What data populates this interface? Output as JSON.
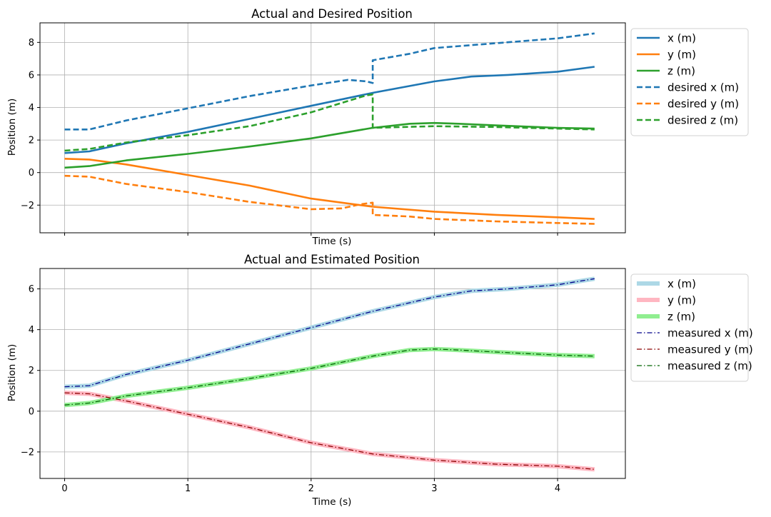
{
  "chart_data": [
    {
      "type": "line",
      "title": "Actual and Desired Position",
      "xlabel": "Time (s)",
      "ylabel": "Position (m)",
      "xlim": [
        -0.2,
        4.55
      ],
      "ylim": [
        -3.7,
        9.2
      ],
      "xticks": [
        0,
        1,
        2,
        3,
        4
      ],
      "xtick_labels_visible": false,
      "yticks": [
        -2,
        0,
        2,
        4,
        6,
        8
      ],
      "grid": true,
      "legend": "outside-right",
      "series": [
        {
          "name": "x (m)",
          "color": "#1f77b4",
          "style": "solid",
          "x": [
            0,
            0.2,
            0.5,
            1,
            1.5,
            2,
            2.5,
            3,
            3.3,
            3.6,
            4,
            4.3
          ],
          "y": [
            1.2,
            1.3,
            1.8,
            2.5,
            3.3,
            4.1,
            4.9,
            5.6,
            5.9,
            6.0,
            6.2,
            6.5
          ]
        },
        {
          "name": "y (m)",
          "color": "#ff7f0e",
          "style": "solid",
          "x": [
            0,
            0.2,
            0.5,
            1,
            1.5,
            2,
            2.5,
            3,
            3.5,
            4,
            4.3
          ],
          "y": [
            0.85,
            0.8,
            0.5,
            -0.15,
            -0.8,
            -1.6,
            -2.1,
            -2.4,
            -2.6,
            -2.75,
            -2.85
          ]
        },
        {
          "name": "z (m)",
          "color": "#2ca02c",
          "style": "solid",
          "x": [
            0,
            0.2,
            0.5,
            1,
            1.5,
            2,
            2.5,
            2.8,
            3,
            3.2,
            3.5,
            4,
            4.3
          ],
          "y": [
            0.3,
            0.4,
            0.75,
            1.15,
            1.6,
            2.1,
            2.75,
            3.0,
            3.05,
            3.0,
            2.9,
            2.75,
            2.7
          ]
        },
        {
          "name": "desired x (m)",
          "color": "#1f77b4",
          "style": "dashed",
          "x": [
            0,
            0.2,
            0.5,
            1,
            1.5,
            2,
            2.3,
            2.45,
            2.5,
            2.5,
            2.8,
            3,
            3.5,
            4,
            4.3
          ],
          "y": [
            2.65,
            2.65,
            3.2,
            3.95,
            4.7,
            5.35,
            5.7,
            5.6,
            5.5,
            6.9,
            7.3,
            7.65,
            7.95,
            8.25,
            8.55
          ]
        },
        {
          "name": "desired y (m)",
          "color": "#ff7f0e",
          "style": "dashed",
          "x": [
            0,
            0.2,
            0.5,
            1,
            1.5,
            2,
            2.25,
            2.4,
            2.5,
            2.5,
            2.8,
            3,
            3.5,
            4,
            4.3
          ],
          "y": [
            -0.2,
            -0.25,
            -0.7,
            -1.2,
            -1.8,
            -2.25,
            -2.2,
            -1.95,
            -1.85,
            -2.6,
            -2.7,
            -2.85,
            -3.0,
            -3.1,
            -3.15
          ]
        },
        {
          "name": "desired z (m)",
          "color": "#2ca02c",
          "style": "dashed",
          "x": [
            0,
            0.2,
            0.5,
            1,
            1.5,
            2,
            2.3,
            2.45,
            2.5,
            2.5,
            3,
            3.5,
            4,
            4.3
          ],
          "y": [
            1.35,
            1.45,
            1.85,
            2.3,
            2.85,
            3.7,
            4.4,
            4.75,
            4.8,
            2.75,
            2.85,
            2.8,
            2.7,
            2.65
          ]
        }
      ]
    },
    {
      "type": "line",
      "title": "Actual and Estimated Position",
      "xlabel": "Time (s)",
      "ylabel": "Position (m)",
      "xlim": [
        -0.2,
        4.55
      ],
      "ylim": [
        -3.3,
        7.0
      ],
      "xticks": [
        0,
        1,
        2,
        3,
        4
      ],
      "xtick_labels": [
        "0",
        "1",
        "2",
        "3",
        "4"
      ],
      "yticks": [
        -2,
        0,
        2,
        4,
        6
      ],
      "ytick_labels": [
        "−2",
        "0",
        "2",
        "4",
        "6"
      ],
      "grid": true,
      "legend": "outside-right",
      "series": [
        {
          "name": "x (m)",
          "color": "#add8e6",
          "style": "thick",
          "x": [
            0,
            0.2,
            0.5,
            1,
            1.5,
            2,
            2.5,
            3,
            3.3,
            3.6,
            4,
            4.3
          ],
          "y": [
            1.2,
            1.25,
            1.8,
            2.5,
            3.3,
            4.1,
            4.9,
            5.6,
            5.9,
            6.0,
            6.2,
            6.5
          ]
        },
        {
          "name": "y (m)",
          "color": "#ffb6c1",
          "style": "thick",
          "x": [
            0,
            0.2,
            0.5,
            1,
            1.5,
            2,
            2.5,
            3,
            3.5,
            4,
            4.3
          ],
          "y": [
            0.9,
            0.85,
            0.5,
            -0.15,
            -0.8,
            -1.55,
            -2.1,
            -2.4,
            -2.6,
            -2.7,
            -2.85
          ]
        },
        {
          "name": "z (m)",
          "color": "#90ee90",
          "style": "thick",
          "x": [
            0,
            0.2,
            0.5,
            1,
            1.5,
            2,
            2.5,
            2.8,
            3,
            3.2,
            3.5,
            4,
            4.3
          ],
          "y": [
            0.3,
            0.4,
            0.75,
            1.15,
            1.6,
            2.1,
            2.7,
            3.0,
            3.05,
            3.0,
            2.9,
            2.75,
            2.7
          ]
        },
        {
          "name": "measured x (m)",
          "color": "#00008b",
          "style": "dashdot",
          "x": [
            0,
            0.2,
            0.5,
            1,
            1.5,
            2,
            2.5,
            3,
            3.3,
            3.6,
            4,
            4.3
          ],
          "y": [
            1.2,
            1.25,
            1.8,
            2.5,
            3.3,
            4.1,
            4.9,
            5.6,
            5.9,
            6.0,
            6.2,
            6.5
          ]
        },
        {
          "name": "measured y (m)",
          "color": "#8b0000",
          "style": "dashdot",
          "x": [
            0,
            0.2,
            0.5,
            1,
            1.5,
            2,
            2.5,
            3,
            3.5,
            4,
            4.3
          ],
          "y": [
            0.9,
            0.85,
            0.5,
            -0.15,
            -0.8,
            -1.55,
            -2.1,
            -2.4,
            -2.6,
            -2.7,
            -2.85
          ]
        },
        {
          "name": "measured z (m)",
          "color": "#006400",
          "style": "dashdot",
          "x": [
            0,
            0.2,
            0.5,
            1,
            1.5,
            2,
            2.5,
            2.8,
            3,
            3.2,
            3.5,
            4,
            4.3
          ],
          "y": [
            0.3,
            0.4,
            0.75,
            1.15,
            1.6,
            2.1,
            2.7,
            3.0,
            3.05,
            3.0,
            2.9,
            2.75,
            2.7
          ]
        }
      ]
    }
  ]
}
